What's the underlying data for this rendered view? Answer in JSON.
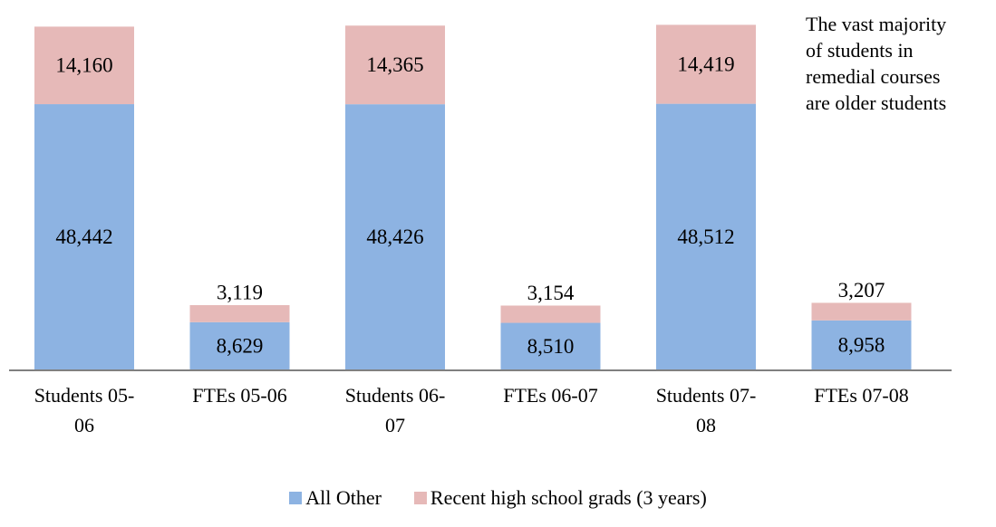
{
  "annotation": "The vast majority\nof students in\nremedial courses\nare older students",
  "chart_data": {
    "type": "bar",
    "stacked": true,
    "categories": [
      "Students 05-\n06",
      "FTEs 05-06",
      "Students 06-\n07",
      "FTEs 06-07",
      "Students 07-\n08",
      "FTEs 07-08"
    ],
    "series": [
      {
        "name": "All Other",
        "values": [
          48442,
          8629,
          48426,
          8510,
          48512,
          8958
        ],
        "labels": [
          "48,442",
          "8,629",
          "48,426",
          "8,510",
          "48,512",
          "8,958"
        ],
        "color": "#8DB3E2"
      },
      {
        "name": "Recent high school grads (3 years)",
        "values": [
          14160,
          3119,
          14365,
          3154,
          14419,
          3207
        ],
        "labels": [
          "14,160",
          "3,119",
          "14,365",
          "3,154",
          "14,419",
          "3,207"
        ],
        "color": "#E6B9B8"
      }
    ],
    "ylim": [
      0,
      63000
    ],
    "grid": false,
    "legend": "bottom"
  }
}
